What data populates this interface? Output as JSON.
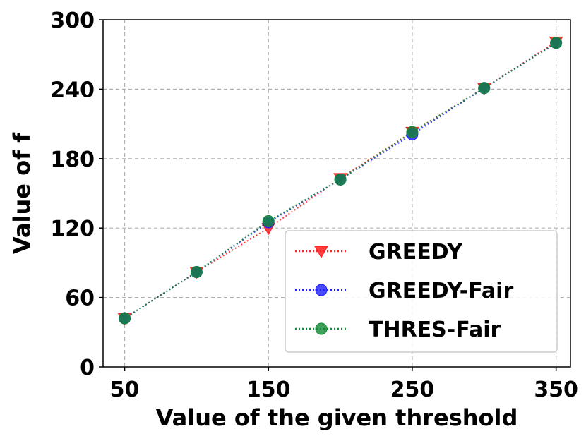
{
  "chart_data": {
    "type": "line",
    "xlabel": "Value of the given threshold",
    "ylabel": "Value of f",
    "xlim": [
      35,
      360
    ],
    "ylim": [
      0,
      300
    ],
    "xticks": [
      50,
      150,
      250,
      350
    ],
    "yticks": [
      0,
      60,
      120,
      180,
      240,
      300
    ],
    "grid": true,
    "legend_position": "bottom-right",
    "x": [
      50,
      100,
      150,
      200,
      250,
      300,
      350
    ],
    "series": [
      {
        "name": "GREEDY",
        "color": "#ff2020",
        "marker": "triangle-down",
        "values": [
          42,
          82,
          120,
          163,
          203,
          241,
          281
        ]
      },
      {
        "name": "GREEDY-Fair",
        "color": "#1f1fff",
        "marker": "circle",
        "values": [
          42,
          82,
          125,
          162,
          201,
          241,
          280
        ]
      },
      {
        "name": "THRES-Fair",
        "color": "#118833",
        "marker": "circle",
        "values": [
          42,
          82,
          126,
          162,
          203,
          241,
          280
        ]
      }
    ]
  }
}
